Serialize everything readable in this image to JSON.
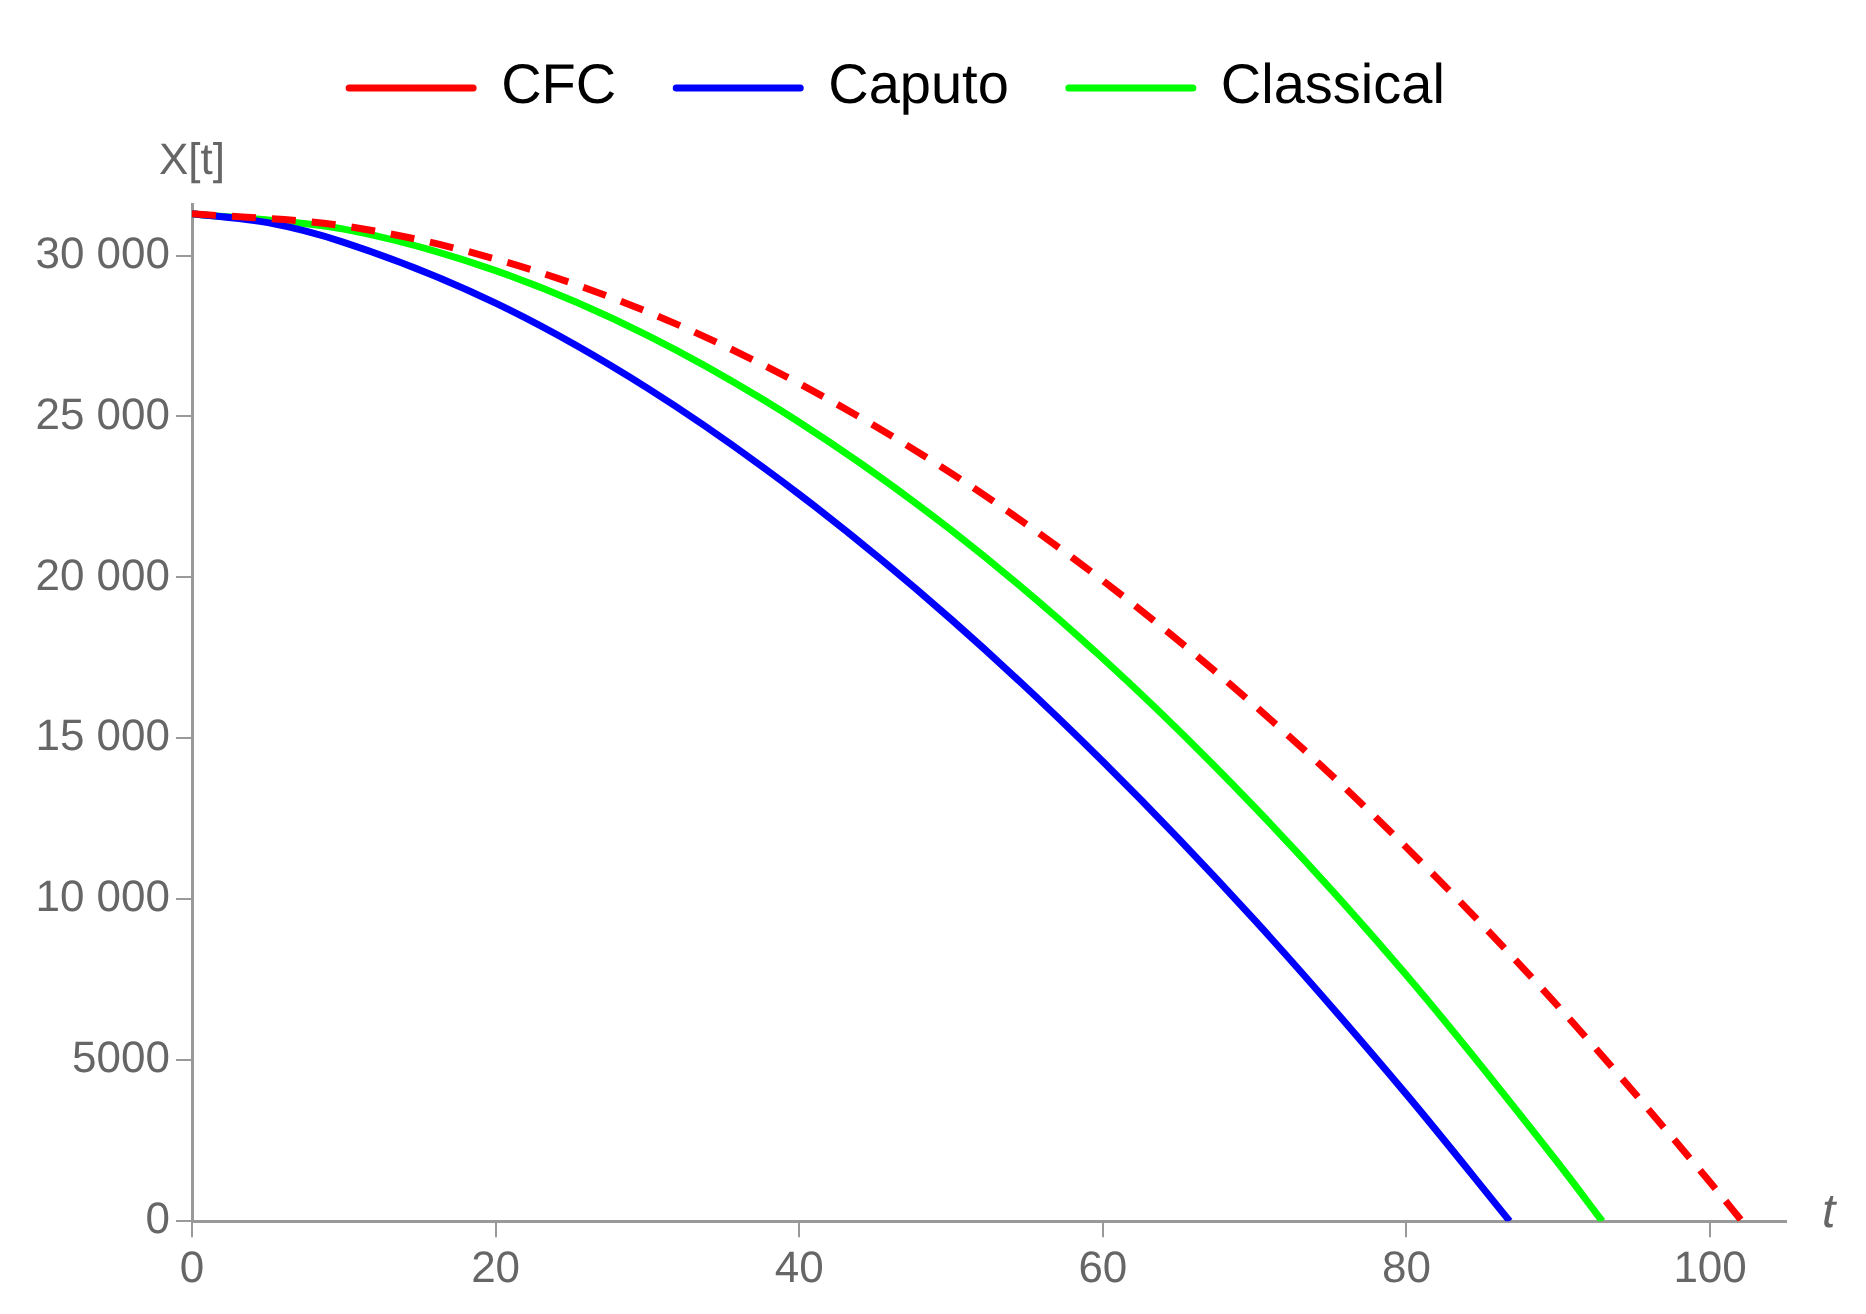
{
  "chart_data": {
    "type": "line",
    "xlabel": "t",
    "ylabel": "X[t]",
    "xlim": [
      0,
      105
    ],
    "xticks": [
      0,
      20,
      40,
      60,
      80,
      100
    ],
    "ylim": [
      0,
      31600
    ],
    "yticks": [
      0,
      5000,
      {
        "value": 10000,
        "label": "10 000"
      },
      {
        "value": 15000,
        "label": "15 000"
      },
      {
        "value": 20000,
        "label": "20 000"
      },
      {
        "value": 25000,
        "label": "25 000"
      },
      {
        "value": 30000,
        "label": "30 000"
      }
    ],
    "grid": false,
    "legend": "top",
    "marker": "none",
    "series": [
      {
        "name": "CFC",
        "color": "#ff0000",
        "line_style": "dashed",
        "x": [
          0,
          10,
          20,
          30,
          40,
          50,
          60,
          70,
          80,
          90,
          100,
          102.1
        ],
        "values": [
          31300,
          30920,
          29890,
          28250,
          26020,
          23240,
          19900,
          16020,
          11610,
          6670,
          1210,
          0
        ]
      },
      {
        "name": "Caputo",
        "color": "#0000ff",
        "line_style": "solid",
        "x": [
          0,
          5,
          10,
          20,
          30,
          40,
          50,
          60,
          70,
          80,
          86.8
        ],
        "values": [
          31300,
          31020,
          30410,
          28520,
          25880,
          22580,
          18700,
          14280,
          9350,
          3940,
          0
        ]
      },
      {
        "name": "Classical",
        "color": "#00ff00",
        "line_style": "solid",
        "x": [
          0,
          10,
          20,
          30,
          40,
          50,
          60,
          70,
          80,
          90,
          92.9
        ],
        "values": [
          31300,
          30820,
          29530,
          27520,
          24820,
          21470,
          17480,
          12860,
          7640,
          1800,
          0
        ]
      }
    ]
  }
}
